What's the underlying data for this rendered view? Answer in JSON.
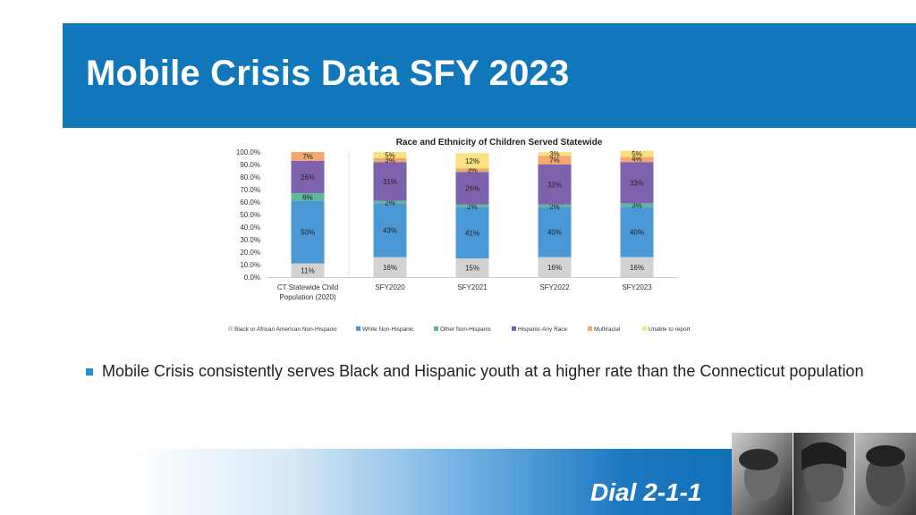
{
  "slide": {
    "title": "Mobile Crisis Data SFY 2023",
    "bullet": "Mobile Crisis consistently serves Black and Hispanic youth at a higher rate than the Connecticut population",
    "footer_text": "Dial 2-1-1",
    "colors": {
      "title_bar": "#1177bb",
      "bullet": "#2a8bd0"
    }
  },
  "chart_data": {
    "type": "bar",
    "stacked": true,
    "title": "Race and Ethnicity of Children Served Statewide",
    "xlabel": "",
    "ylabel": "",
    "ylim": [
      0,
      100
    ],
    "y_ticks": [
      "0.0%",
      "10.0%",
      "20.0%",
      "30.0%",
      "40.0%",
      "50.0%",
      "60.0%",
      "70.0%",
      "80.0%",
      "90.0%",
      "100.0%"
    ],
    "categories": [
      "CT Statewide Child Population (2020)",
      "SFY2020",
      "SFY2021",
      "SFY2022",
      "SFY2023"
    ],
    "legend_position": "bottom",
    "series": [
      {
        "name": "Black or African American Non-Hispanic",
        "color": "#d2d2d2",
        "values": [
          11,
          16,
          15,
          16,
          16
        ],
        "labels": [
          "11%",
          "16%",
          "15%",
          "16%",
          "16%"
        ]
      },
      {
        "name": "White Non-Hispanic",
        "color": "#4a98d6",
        "values": [
          50,
          43,
          41,
          40,
          40
        ],
        "labels": [
          "50%",
          "43%",
          "41%",
          "40%",
          "40%"
        ]
      },
      {
        "name": "Other Non-Hispanic",
        "color": "#5fb89a",
        "values": [
          6,
          2,
          2,
          2,
          3
        ],
        "labels": [
          "6%",
          "2%",
          "2%",
          "2%",
          "3%"
        ]
      },
      {
        "name": "Hispanic-Any Race",
        "color": "#7f62ad",
        "values": [
          26,
          31,
          26,
          32,
          33
        ],
        "labels": [
          "26%",
          "31%",
          "26%",
          "32%",
          "33%"
        ]
      },
      {
        "name": "Multiracial",
        "color": "#f2a86e",
        "values": [
          7,
          3,
          3,
          7,
          4
        ],
        "labels": [
          "7%",
          "3%",
          "3%",
          "7%",
          "4%"
        ]
      },
      {
        "name": "Unable to report",
        "color": "#fbe07f",
        "values": [
          0,
          5,
          12,
          3,
          5
        ],
        "labels": [
          "",
          "5%",
          "12%",
          "3%",
          "5%"
        ]
      }
    ]
  }
}
